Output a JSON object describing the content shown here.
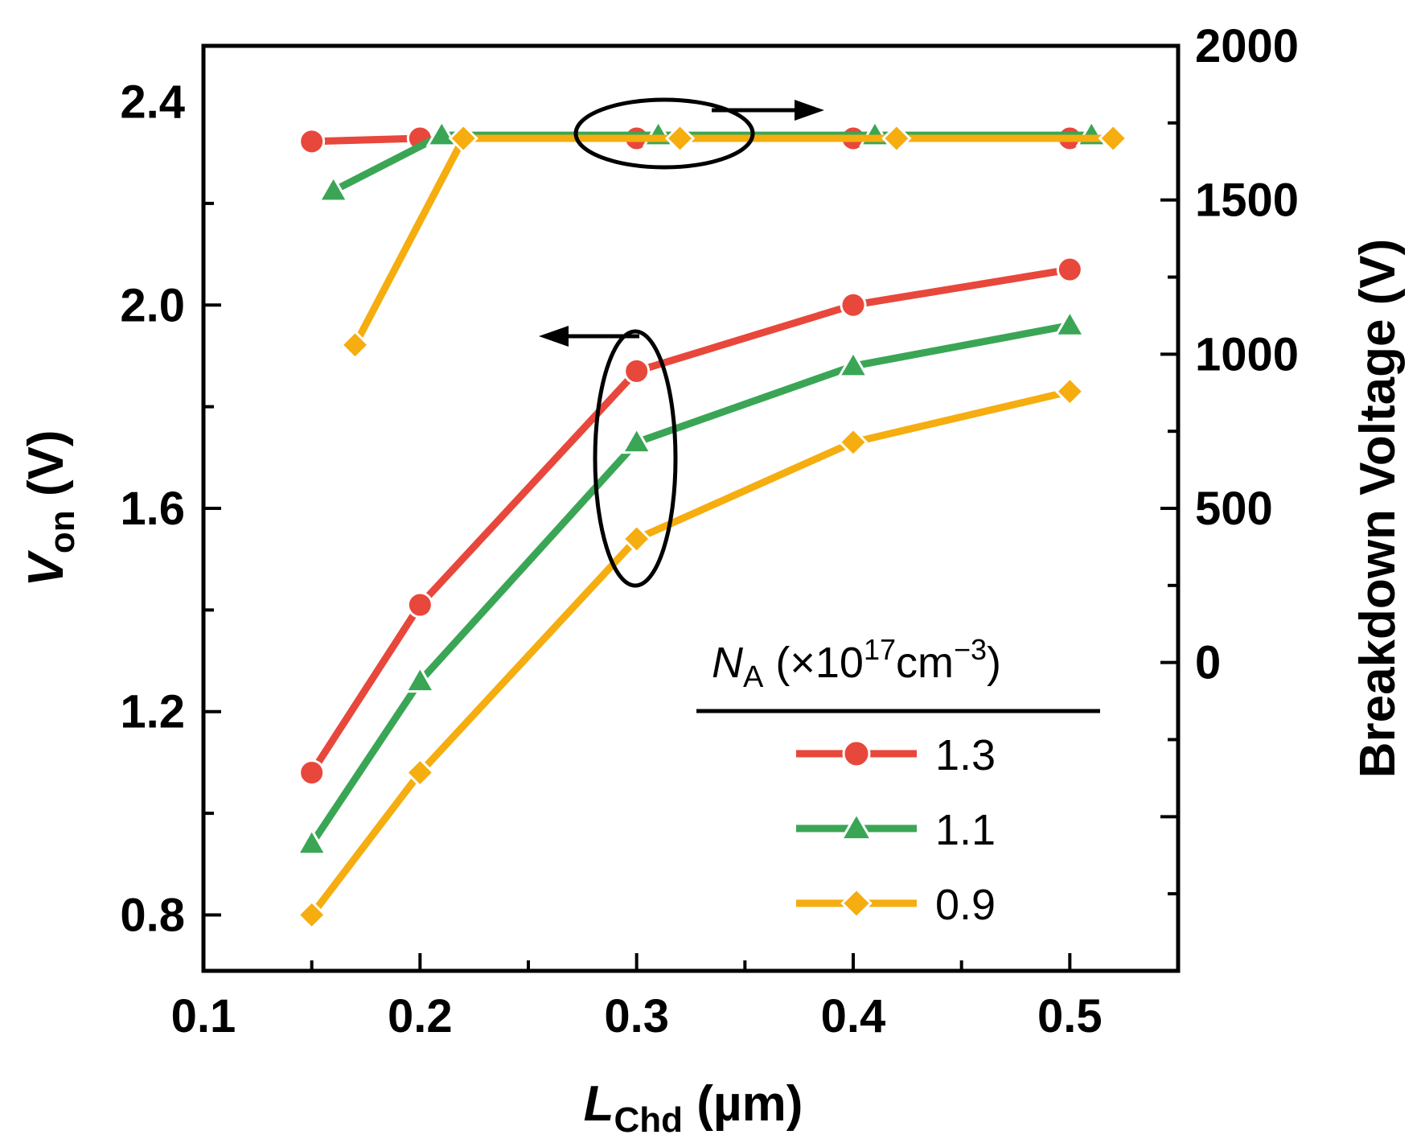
{
  "chart_data": {
    "type": "line",
    "x_label": {
      "var": "L",
      "sub": "Chd",
      "unit": " (µm)"
    },
    "y_left_label": {
      "var": "V",
      "sub": "on",
      "unit": " (V)"
    },
    "y_right_label": "Breakdown Voltage (V)",
    "xlim": [
      0.1,
      0.55
    ],
    "ylim_left": [
      0.69,
      2.51
    ],
    "ylim_right": [
      -1000,
      2000
    ],
    "x_ticks": [
      "0.1",
      "0.2",
      "0.3",
      "0.4",
      "0.5"
    ],
    "y_left_ticks": [
      "0.8",
      "1.2",
      "1.6",
      "2.0",
      "2.4"
    ],
    "y_right_ticks": [
      "0",
      "500",
      "1000",
      "1500",
      "2000"
    ],
    "legend": {
      "title": {
        "var": "N",
        "sub": "A",
        "rest": " (×10",
        "sup1": "17",
        "unit": "cm",
        "sup2": "−3",
        "close": ")"
      },
      "position": "bottom-right",
      "entries": [
        "1.3",
        "1.1",
        "0.9"
      ]
    },
    "series": [
      {
        "name": "1.3",
        "color": "#e8473c",
        "marker": "circle",
        "von": {
          "x": [
            0.15,
            0.2,
            0.3,
            0.4,
            0.5
          ],
          "y": [
            1.08,
            1.41,
            1.87,
            2.0,
            2.07
          ]
        },
        "breakdown": {
          "x": [
            0.15,
            0.2,
            0.3,
            0.4,
            0.5
          ],
          "y": [
            1690,
            1700,
            1700,
            1700,
            1700
          ]
        }
      },
      {
        "name": "1.1",
        "color": "#3aa655",
        "marker": "triangle",
        "von": {
          "x": [
            0.15,
            0.2,
            0.3,
            0.4,
            0.5
          ],
          "y": [
            0.94,
            1.26,
            1.73,
            1.88,
            1.96
          ]
        },
        "breakdown": {
          "x": [
            0.16,
            0.21,
            0.31,
            0.41,
            0.51
          ],
          "y": [
            1530,
            1710,
            1710,
            1710,
            1710
          ]
        }
      },
      {
        "name": "0.9",
        "color": "#f5ad0f",
        "marker": "diamond",
        "von": {
          "x": [
            0.15,
            0.2,
            0.3,
            0.4,
            0.5
          ],
          "y": [
            0.8,
            1.08,
            1.54,
            1.73,
            1.83
          ]
        },
        "breakdown": {
          "x": [
            0.17,
            0.22,
            0.32,
            0.42,
            0.52
          ],
          "y": [
            1030,
            1700,
            1700,
            1700,
            1700
          ]
        }
      }
    ]
  }
}
